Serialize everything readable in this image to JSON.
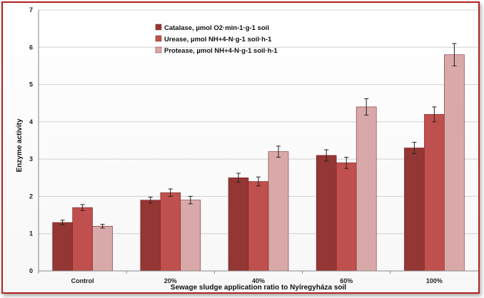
{
  "chart_data": {
    "type": "bar",
    "title": "",
    "xlabel": "Sewage sludge application ratio to Nyíregyháza soil",
    "ylabel": "Enzyme activity",
    "ylim": [
      0,
      7
    ],
    "yticks": [
      "0",
      "1",
      "2",
      "3",
      "4",
      "5",
      "6",
      "7"
    ],
    "grid": true,
    "legend_position": "top-left",
    "categories": [
      "Control",
      "20%",
      "40%",
      "60%",
      "100%"
    ],
    "series": [
      {
        "name": "Catalase, µmol O2·min-1·g-1 soil",
        "color": "#943634",
        "values": [
          1.3,
          1.9,
          2.5,
          3.1,
          3.3
        ],
        "errors": [
          0.06,
          0.08,
          0.12,
          0.15,
          0.15
        ]
      },
      {
        "name": "Urease, µmol NH+4-N·g-1 soil·h-1",
        "color": "#c0504d",
        "values": [
          1.7,
          2.1,
          2.4,
          2.9,
          4.2
        ],
        "errors": [
          0.08,
          0.1,
          0.12,
          0.15,
          0.2
        ]
      },
      {
        "name": "Protease, µmol NH+4-N·g-1 soil·h-1",
        "color": "#d9a9a9",
        "values": [
          1.2,
          1.9,
          3.2,
          4.4,
          5.8
        ],
        "errors": [
          0.05,
          0.1,
          0.15,
          0.22,
          0.3
        ]
      }
    ]
  }
}
